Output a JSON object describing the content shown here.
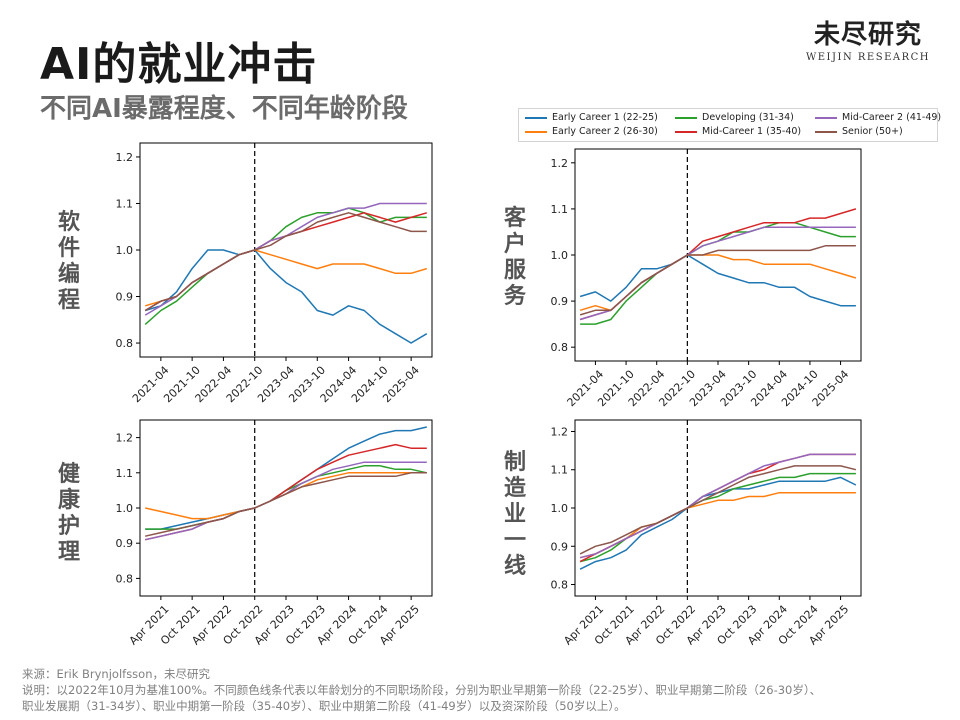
{
  "page": {
    "title": "AI的就业冲击",
    "subtitle": "不同AI暴露程度、不同年龄阶段",
    "brand_cn": "未尽研究",
    "brand_en": "WEIJIN RESEARCH"
  },
  "legend": [
    {
      "name": "Early Career 1 (22-25)",
      "color": "#1f77b4"
    },
    {
      "name": "Early Career 2 (26-30)",
      "color": "#ff7f0e"
    },
    {
      "name": "Developing (31-34)",
      "color": "#2ca02c"
    },
    {
      "name": "Mid-Career 1 (35-40)",
      "color": "#d62728"
    },
    {
      "name": "Mid-Career 2 (41-49)",
      "color": "#9467bd"
    },
    {
      "name": "Senior (50+)",
      "color": "#8c564b"
    }
  ],
  "footer": {
    "source": "来源：Erik Brynjolfsson，未尽研究",
    "note_line1": "说明：以2022年10月为基准100%。不同颜色线条代表以年龄划分的不同职场阶段，分别为职业早期第一阶段（22-25岁）、职业早期第二阶段（26-30岁）、",
    "note_line2": "职业发展期（31-34岁）、职业中期第一阶段（35-40岁）、职业中期第二阶段（41-49岁）以及资深阶段（50岁以上）。"
  },
  "chart_data": [
    {
      "type": "line",
      "panel_label": "软件编程",
      "x": [
        "2021-01",
        "2021-04",
        "2021-07",
        "2021-10",
        "2022-01",
        "2022-04",
        "2022-07",
        "2022-10",
        "2023-01",
        "2023-04",
        "2023-07",
        "2023-10",
        "2024-01",
        "2024-04",
        "2024-07",
        "2024-10",
        "2025-01",
        "2025-04",
        "2025-07"
      ],
      "xticks": [
        "2021-04",
        "2021-10",
        "2022-04",
        "2022-10",
        "2023-04",
        "2023-10",
        "2024-04",
        "2024-10",
        "2025-04"
      ],
      "ylim": [
        0.77,
        1.23
      ],
      "yticks": [
        "0.8",
        "0.9",
        "1.0",
        "1.1",
        "1.2"
      ],
      "reference_line": "2022-10",
      "series": [
        {
          "name": "Early Career 1 (22-25)",
          "values": [
            0.87,
            0.88,
            0.91,
            0.96,
            1.0,
            1.0,
            0.99,
            1.0,
            0.96,
            0.93,
            0.91,
            0.87,
            0.86,
            0.88,
            0.87,
            0.84,
            0.82,
            0.8,
            0.82
          ]
        },
        {
          "name": "Early Career 2 (26-30)",
          "values": [
            0.88,
            0.89,
            0.9,
            0.93,
            0.95,
            0.97,
            0.99,
            1.0,
            0.99,
            0.98,
            0.97,
            0.96,
            0.97,
            0.97,
            0.97,
            0.96,
            0.95,
            0.95,
            0.96
          ]
        },
        {
          "name": "Developing (31-34)",
          "values": [
            0.84,
            0.87,
            0.89,
            0.92,
            0.95,
            0.97,
            0.99,
            1.0,
            1.02,
            1.05,
            1.07,
            1.08,
            1.08,
            1.09,
            1.08,
            1.06,
            1.07,
            1.07,
            1.07
          ]
        },
        {
          "name": "Mid-Career 1 (35-40)",
          "values": [
            0.87,
            0.89,
            0.9,
            0.93,
            0.95,
            0.97,
            0.99,
            1.0,
            1.02,
            1.03,
            1.04,
            1.05,
            1.06,
            1.07,
            1.08,
            1.07,
            1.06,
            1.07,
            1.08
          ]
        },
        {
          "name": "Mid-Career 2 (41-49)",
          "values": [
            0.86,
            0.88,
            0.9,
            0.93,
            0.95,
            0.97,
            0.99,
            1.0,
            1.02,
            1.03,
            1.05,
            1.07,
            1.08,
            1.09,
            1.09,
            1.1,
            1.1,
            1.1,
            1.1
          ]
        },
        {
          "name": "Senior (50+)",
          "values": [
            0.87,
            0.89,
            0.9,
            0.93,
            0.95,
            0.97,
            0.99,
            1.0,
            1.01,
            1.03,
            1.04,
            1.06,
            1.07,
            1.08,
            1.07,
            1.06,
            1.05,
            1.04,
            1.04
          ]
        }
      ]
    },
    {
      "type": "line",
      "panel_label": "客户服务",
      "x": [
        "2021-01",
        "2021-04",
        "2021-07",
        "2021-10",
        "2022-01",
        "2022-04",
        "2022-07",
        "2022-10",
        "2023-01",
        "2023-04",
        "2023-07",
        "2023-10",
        "2024-01",
        "2024-04",
        "2024-07",
        "2024-10",
        "2025-01",
        "2025-04",
        "2025-07"
      ],
      "xticks": [
        "2021-04",
        "2021-10",
        "2022-04",
        "2022-10",
        "2023-04",
        "2023-10",
        "2024-04",
        "2024-10",
        "2025-04"
      ],
      "ylim": [
        0.77,
        1.23
      ],
      "yticks": [
        "0.8",
        "0.9",
        "1.0",
        "1.1",
        "1.2"
      ],
      "reference_line": "2022-10",
      "series": [
        {
          "name": "Early Career 1 (22-25)",
          "values": [
            0.91,
            0.92,
            0.9,
            0.93,
            0.97,
            0.97,
            0.98,
            1.0,
            0.98,
            0.96,
            0.95,
            0.94,
            0.94,
            0.93,
            0.93,
            0.91,
            0.9,
            0.89,
            0.89
          ]
        },
        {
          "name": "Early Career 2 (26-30)",
          "values": [
            0.88,
            0.89,
            0.88,
            0.91,
            0.94,
            0.96,
            0.98,
            1.0,
            1.0,
            1.0,
            0.99,
            0.99,
            0.98,
            0.98,
            0.98,
            0.98,
            0.97,
            0.96,
            0.95
          ]
        },
        {
          "name": "Developing (31-34)",
          "values": [
            0.85,
            0.85,
            0.86,
            0.9,
            0.93,
            0.96,
            0.98,
            1.0,
            1.02,
            1.03,
            1.05,
            1.05,
            1.06,
            1.07,
            1.07,
            1.06,
            1.05,
            1.04,
            1.04
          ]
        },
        {
          "name": "Mid-Career 1 (35-40)",
          "values": [
            0.86,
            0.87,
            0.88,
            0.91,
            0.94,
            0.96,
            0.98,
            1.0,
            1.03,
            1.04,
            1.05,
            1.06,
            1.07,
            1.07,
            1.07,
            1.08,
            1.08,
            1.09,
            1.1
          ]
        },
        {
          "name": "Mid-Career 2 (41-49)",
          "values": [
            0.86,
            0.87,
            0.88,
            0.91,
            0.94,
            0.96,
            0.98,
            1.0,
            1.02,
            1.03,
            1.04,
            1.05,
            1.06,
            1.06,
            1.06,
            1.06,
            1.06,
            1.06,
            1.06
          ]
        },
        {
          "name": "Senior (50+)",
          "values": [
            0.87,
            0.88,
            0.88,
            0.91,
            0.94,
            0.96,
            0.98,
            1.0,
            1.0,
            1.01,
            1.01,
            1.01,
            1.01,
            1.01,
            1.01,
            1.01,
            1.02,
            1.02,
            1.02
          ]
        }
      ]
    },
    {
      "type": "line",
      "panel_label": "健康护理",
      "x": [
        "2021-01",
        "2021-04",
        "2021-07",
        "2021-10",
        "2022-01",
        "2022-04",
        "2022-07",
        "2022-10",
        "2023-01",
        "2023-04",
        "2023-07",
        "2023-10",
        "2024-01",
        "2024-04",
        "2024-07",
        "2024-10",
        "2025-01",
        "2025-04",
        "2025-07"
      ],
      "xticks": [
        "Apr 2021",
        "Oct 2021",
        "Apr 2022",
        "Oct 2022",
        "Apr 2023",
        "Oct 2023",
        "Apr 2024",
        "Oct 2024",
        "Apr 2025"
      ],
      "ylim": [
        0.75,
        1.25
      ],
      "yticks": [
        "0.8",
        "0.9",
        "1.0",
        "1.1",
        "1.2"
      ],
      "reference_line": "2022-10",
      "series": [
        {
          "name": "Early Career 1 (22-25)",
          "values": [
            0.94,
            0.94,
            0.95,
            0.96,
            0.97,
            0.98,
            0.99,
            1.0,
            1.02,
            1.05,
            1.08,
            1.11,
            1.14,
            1.17,
            1.19,
            1.21,
            1.22,
            1.22,
            1.23
          ]
        },
        {
          "name": "Early Career 2 (26-30)",
          "values": [
            1.0,
            0.99,
            0.98,
            0.97,
            0.97,
            0.98,
            0.99,
            1.0,
            1.02,
            1.04,
            1.06,
            1.08,
            1.09,
            1.1,
            1.1,
            1.1,
            1.1,
            1.1,
            1.1
          ]
        },
        {
          "name": "Developing (31-34)",
          "values": [
            0.94,
            0.94,
            0.94,
            0.95,
            0.96,
            0.97,
            0.99,
            1.0,
            1.02,
            1.05,
            1.07,
            1.09,
            1.1,
            1.11,
            1.12,
            1.12,
            1.11,
            1.11,
            1.1
          ]
        },
        {
          "name": "Mid-Career 1 (35-40)",
          "values": [
            0.91,
            0.92,
            0.93,
            0.94,
            0.96,
            0.97,
            0.99,
            1.0,
            1.02,
            1.05,
            1.08,
            1.11,
            1.13,
            1.15,
            1.16,
            1.17,
            1.18,
            1.17,
            1.17
          ]
        },
        {
          "name": "Mid-Career 2 (41-49)",
          "values": [
            0.91,
            0.92,
            0.93,
            0.94,
            0.96,
            0.97,
            0.99,
            1.0,
            1.02,
            1.04,
            1.07,
            1.09,
            1.11,
            1.12,
            1.13,
            1.13,
            1.13,
            1.13,
            1.13
          ]
        },
        {
          "name": "Senior (50+)",
          "values": [
            0.92,
            0.93,
            0.94,
            0.95,
            0.96,
            0.97,
            0.99,
            1.0,
            1.02,
            1.04,
            1.06,
            1.07,
            1.08,
            1.09,
            1.09,
            1.09,
            1.09,
            1.1,
            1.1
          ]
        }
      ]
    },
    {
      "type": "line",
      "panel_label": "制造业一线",
      "x": [
        "2021-01",
        "2021-04",
        "2021-07",
        "2021-10",
        "2022-01",
        "2022-04",
        "2022-07",
        "2022-10",
        "2023-01",
        "2023-04",
        "2023-07",
        "2023-10",
        "2024-01",
        "2024-04",
        "2024-07",
        "2024-10",
        "2025-01",
        "2025-04",
        "2025-07"
      ],
      "xticks": [
        "Apr 2021",
        "Oct 2021",
        "Apr 2022",
        "Oct 2022",
        "Apr 2023",
        "Oct 2023",
        "Apr 2024",
        "Oct 2024",
        "Apr 2025"
      ],
      "ylim": [
        0.77,
        1.23
      ],
      "yticks": [
        "0.8",
        "0.9",
        "1.0",
        "1.1",
        "1.2"
      ],
      "reference_line": "2022-10",
      "series": [
        {
          "name": "Early Career 1 (22-25)",
          "values": [
            0.84,
            0.86,
            0.87,
            0.89,
            0.93,
            0.95,
            0.97,
            1.0,
            1.03,
            1.04,
            1.05,
            1.05,
            1.06,
            1.07,
            1.07,
            1.07,
            1.07,
            1.08,
            1.06
          ]
        },
        {
          "name": "Early Career 2 (26-30)",
          "values": [
            0.87,
            0.88,
            0.9,
            0.92,
            0.95,
            0.96,
            0.98,
            1.0,
            1.01,
            1.02,
            1.02,
            1.03,
            1.03,
            1.04,
            1.04,
            1.04,
            1.04,
            1.04,
            1.04
          ]
        },
        {
          "name": "Developing (31-34)",
          "values": [
            0.86,
            0.87,
            0.89,
            0.92,
            0.94,
            0.96,
            0.98,
            1.0,
            1.02,
            1.03,
            1.05,
            1.06,
            1.07,
            1.08,
            1.08,
            1.09,
            1.09,
            1.09,
            1.09
          ]
        },
        {
          "name": "Mid-Career 1 (35-40)",
          "values": [
            0.86,
            0.88,
            0.9,
            0.92,
            0.94,
            0.96,
            0.98,
            1.0,
            1.03,
            1.05,
            1.07,
            1.09,
            1.1,
            1.12,
            1.13,
            1.14,
            1.14,
            1.14,
            1.14
          ]
        },
        {
          "name": "Mid-Career 2 (41-49)",
          "values": [
            0.87,
            0.88,
            0.9,
            0.92,
            0.94,
            0.96,
            0.98,
            1.0,
            1.03,
            1.05,
            1.07,
            1.09,
            1.11,
            1.12,
            1.13,
            1.14,
            1.14,
            1.14,
            1.14
          ]
        },
        {
          "name": "Senior (50+)",
          "values": [
            0.88,
            0.9,
            0.91,
            0.93,
            0.95,
            0.96,
            0.98,
            1.0,
            1.02,
            1.04,
            1.06,
            1.08,
            1.09,
            1.1,
            1.11,
            1.11,
            1.11,
            1.11,
            1.1
          ]
        }
      ]
    }
  ]
}
